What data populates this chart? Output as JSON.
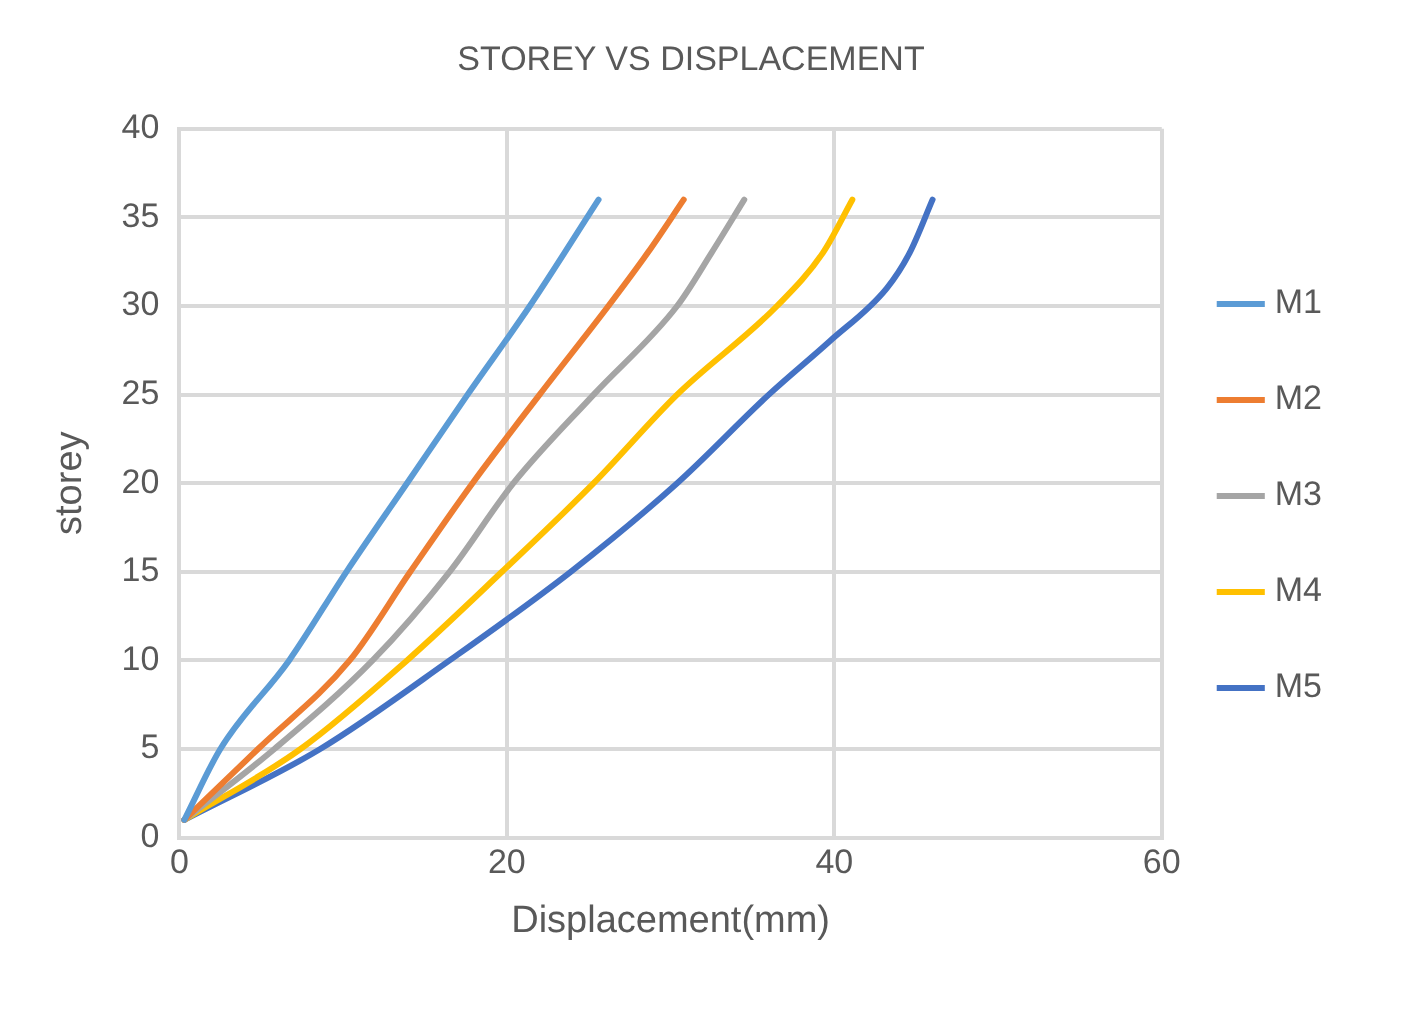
{
  "chart_data": {
    "type": "line",
    "title": "STOREY VS DISPLACEMENT",
    "xlabel": "Displacement(mm)",
    "ylabel": "storey",
    "xlim": [
      0,
      60
    ],
    "xticks": [
      0,
      20,
      40,
      60
    ],
    "ylim": [
      0,
      40
    ],
    "yticks": [
      0,
      5,
      10,
      15,
      20,
      25,
      30,
      35,
      40
    ],
    "grid": true,
    "legend": "right",
    "marker": "none",
    "line_style": "solid",
    "series": [
      {
        "name": "M1",
        "color": "#5b9bd5",
        "x": [
          0.3,
          2.5,
          6.7,
          10.2,
          13.9,
          17.6,
          21.4,
          25.6
        ],
        "values": [
          1,
          5,
          10,
          15,
          20,
          25,
          30,
          36
        ]
      },
      {
        "name": "M2",
        "color": "#ed7d31",
        "x": [
          0.3,
          4.8,
          10.4,
          14.1,
          17.9,
          22.0,
          26.2,
          28.6,
          30.8
        ],
        "values": [
          1,
          5,
          10,
          15,
          20,
          25,
          30,
          33,
          36
        ]
      },
      {
        "name": "M3",
        "color": "#a5a5a5",
        "x": [
          0.3,
          5.8,
          11.8,
          16.5,
          20.4,
          25.3,
          30.4,
          32.5,
          34.5
        ],
        "values": [
          1,
          5,
          10,
          15,
          20,
          25,
          30,
          33,
          36
        ]
      },
      {
        "name": "M4",
        "color": "#ffc000",
        "x": [
          0.3,
          7.4,
          13.9,
          19.7,
          25.3,
          30.4,
          36.5,
          39.3,
          41.1
        ],
        "values": [
          1,
          5,
          10,
          15,
          20,
          25,
          30,
          33,
          36
        ]
      },
      {
        "name": "M5",
        "color": "#4472c4",
        "x": [
          0.3,
          8.6,
          16.5,
          23.9,
          30.4,
          36.0,
          39.7,
          43.2,
          44.6,
          46.0
        ],
        "values": [
          1,
          5,
          10,
          15,
          20,
          25,
          28,
          31,
          33,
          36
        ]
      }
    ]
  }
}
